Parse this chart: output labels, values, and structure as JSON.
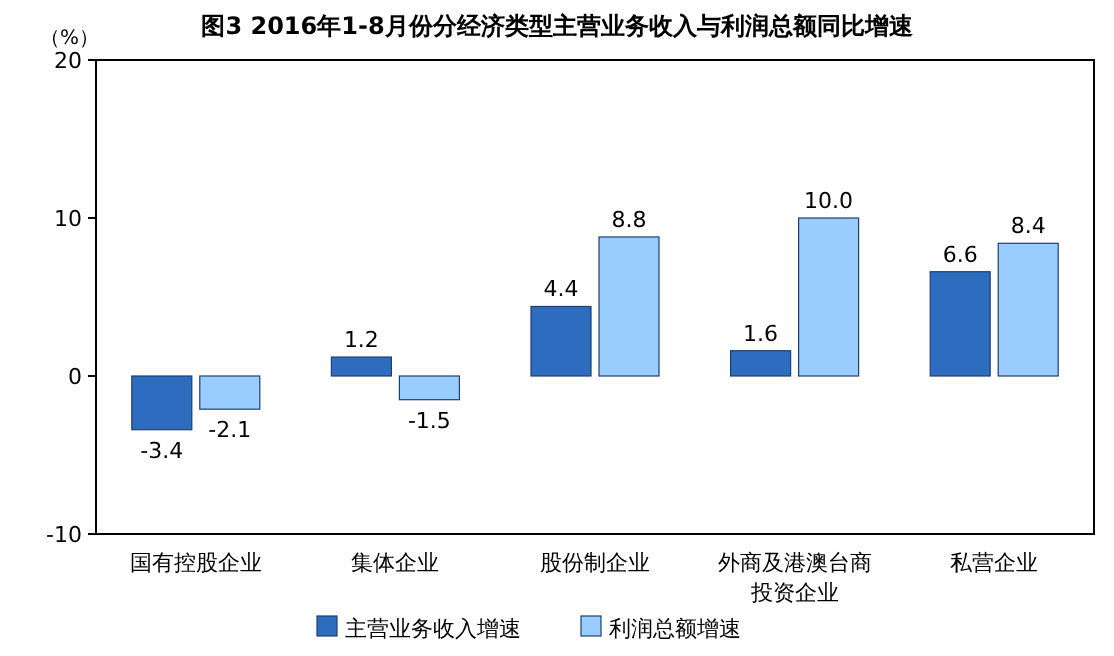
{
  "chart_data": {
    "type": "bar",
    "title": "图3  2016年1-8月份分经济类型主营业务收入与利润总额同比增速",
    "ylabel": "（%）",
    "categories": [
      "国有控股企业",
      "集体企业",
      "股份制企业",
      "外商及港澳台商投资企业",
      "私营企业"
    ],
    "series": [
      {
        "name": "主营业务收入增速",
        "color": "#2e6cbf",
        "values": [
          -3.4,
          1.2,
          4.4,
          1.6,
          6.6
        ],
        "value_labels": [
          "-3.4",
          "1.2",
          "4.4",
          "1.6",
          "6.6"
        ]
      },
      {
        "name": "利润总额增速",
        "color": "#99ccff",
        "values": [
          -2.1,
          -1.5,
          8.8,
          10.0,
          8.4
        ],
        "value_labels": [
          "-2.1",
          "-1.5",
          "8.8",
          "10.0",
          "8.4"
        ]
      }
    ],
    "ylim": [
      -10,
      20
    ],
    "yticks": [
      -10,
      0,
      10,
      20
    ],
    "grid": false,
    "legend": "bottom"
  }
}
